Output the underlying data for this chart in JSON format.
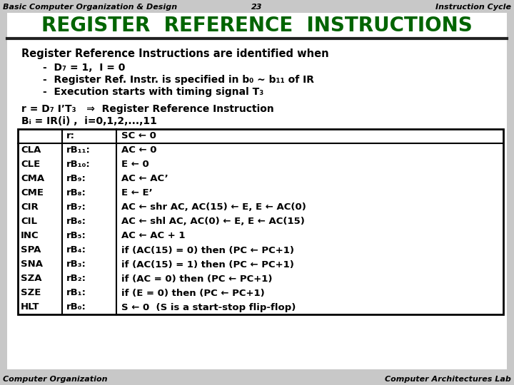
{
  "header_left": "Basic Computer Organization & Design",
  "header_center": "23",
  "header_right": "Instruction Cycle",
  "title": "REGISTER  REFERENCE  INSTRUCTIONS",
  "title_color": "#006400",
  "bg_color": "#c8c8c8",
  "content_bg": "#f0f0f0",
  "footer_left": "Computer Organization",
  "footer_right": "Computer Architectures Lab",
  "body_text_intro": "Register Reference Instructions are identified when",
  "bullet1": "D₇ = 1,  I = 0",
  "bullet2": "Register Ref. Instr. is specified in b₀ ~ b₁₁ of IR",
  "bullet3": "Execution starts with timing signal T₃",
  "formula_line1": "r = D₇ I’T₃   ⇒  Register Reference Instruction",
  "formula_line2": "Bᵢ = IR(i) ,  i=0,1,2,...,11",
  "table_col1": [
    "",
    "CLA",
    "CLE",
    "CMA",
    "CME",
    "CIR",
    "CIL",
    "INC",
    "SPA",
    "SNA",
    "SZA",
    "SZE",
    "HLT"
  ],
  "table_col2": [
    "r:",
    "rB₁₁:",
    "rB₁₀:",
    "rB₉:",
    "rB₈:",
    "rB₇:",
    "rB₆:",
    "rB₅:",
    "rB₄:",
    "rB₃:",
    "rB₂:",
    "rB₁:",
    "rB₀:"
  ],
  "table_col3": [
    "SC ← 0",
    "AC ← 0",
    "E ← 0",
    "AC ← AC’",
    "E ← E’",
    "AC ← shr AC, AC(15) ← E, E ← AC(0)",
    "AC ← shl AC, AC(0) ← E, E ← AC(15)",
    "AC ← AC + 1",
    "if (AC(15) = 0) then (PC ← PC+1)",
    "if (AC(15) = 1) then (PC ← PC+1)",
    "if (AC = 0) then (PC ← PC+1)",
    "if (E = 0) then (PC ← PC+1)",
    "S ← 0  (S is a start-stop flip-flop)"
  ]
}
